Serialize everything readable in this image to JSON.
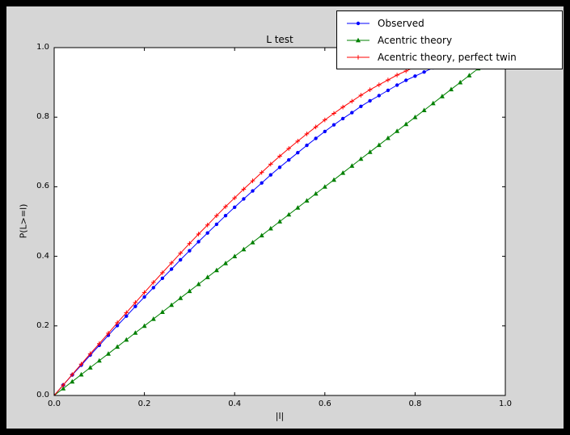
{
  "figure": {
    "window_bg": "#000000",
    "bg": "#d6d6d6",
    "plot_bg": "#ffffff",
    "frame_color": "#000000"
  },
  "chart_data": {
    "type": "line",
    "title": "L test",
    "xlabel": "|l|",
    "ylabel": "P(L>=l)",
    "xlim": [
      0.0,
      1.0
    ],
    "ylim": [
      0.0,
      1.0
    ],
    "grid": false,
    "legend_position": "upper right",
    "x_ticks": [
      "0.0",
      "0.2",
      "0.4",
      "0.6",
      "0.8",
      "1.0"
    ],
    "y_ticks": [
      "0.0",
      "0.2",
      "0.4",
      "0.6",
      "0.8",
      "1.0"
    ],
    "x": [
      0.0,
      0.02,
      0.04,
      0.06,
      0.08,
      0.1,
      0.12,
      0.14,
      0.16,
      0.18,
      0.2,
      0.22,
      0.24,
      0.26,
      0.28,
      0.3,
      0.32,
      0.34,
      0.36,
      0.38,
      0.4,
      0.42,
      0.44,
      0.46,
      0.48,
      0.5,
      0.52,
      0.54,
      0.56,
      0.58,
      0.6,
      0.62,
      0.64,
      0.66,
      0.68,
      0.7,
      0.72,
      0.74,
      0.76,
      0.78,
      0.8,
      0.82,
      0.84,
      0.86,
      0.88,
      0.9,
      0.92,
      0.94,
      0.96,
      0.98,
      1.0
    ],
    "series": [
      {
        "name": "Observed",
        "color": "#0000ff",
        "marker": "circle",
        "values": [
          0.0,
          0.03,
          0.059,
          0.087,
          0.116,
          0.144,
          0.173,
          0.201,
          0.228,
          0.256,
          0.283,
          0.31,
          0.337,
          0.363,
          0.39,
          0.416,
          0.442,
          0.467,
          0.492,
          0.517,
          0.541,
          0.565,
          0.588,
          0.611,
          0.634,
          0.656,
          0.677,
          0.698,
          0.719,
          0.739,
          0.759,
          0.778,
          0.796,
          0.813,
          0.831,
          0.847,
          0.862,
          0.877,
          0.892,
          0.906,
          0.918,
          0.93,
          0.942,
          0.952,
          0.961,
          0.97,
          0.978,
          0.986,
          0.991,
          0.996,
          1.0
        ]
      },
      {
        "name": "Acentric theory",
        "color": "#008000",
        "marker": "triangle",
        "values": [
          0.0,
          0.02,
          0.04,
          0.06,
          0.08,
          0.1,
          0.12,
          0.14,
          0.16,
          0.18,
          0.2,
          0.22,
          0.24,
          0.26,
          0.28,
          0.3,
          0.32,
          0.34,
          0.36,
          0.38,
          0.4,
          0.42,
          0.44,
          0.46,
          0.48,
          0.5,
          0.52,
          0.54,
          0.56,
          0.58,
          0.6,
          0.62,
          0.64,
          0.66,
          0.68,
          0.7,
          0.72,
          0.74,
          0.76,
          0.78,
          0.8,
          0.82,
          0.84,
          0.86,
          0.88,
          0.9,
          0.92,
          0.94,
          0.96,
          0.98,
          1.0
        ]
      },
      {
        "name": "Acentric theory, perfect twin",
        "color": "#ff0000",
        "marker": "plus",
        "values": [
          0.0,
          0.03,
          0.06,
          0.09,
          0.12,
          0.149,
          0.179,
          0.209,
          0.238,
          0.267,
          0.296,
          0.325,
          0.353,
          0.381,
          0.409,
          0.437,
          0.464,
          0.49,
          0.517,
          0.543,
          0.568,
          0.593,
          0.617,
          0.641,
          0.665,
          0.688,
          0.71,
          0.731,
          0.752,
          0.772,
          0.792,
          0.811,
          0.829,
          0.846,
          0.863,
          0.879,
          0.893,
          0.907,
          0.921,
          0.933,
          0.944,
          0.954,
          0.964,
          0.972,
          0.979,
          0.986,
          0.991,
          0.996,
          0.998,
          0.999,
          1.0
        ]
      }
    ]
  }
}
